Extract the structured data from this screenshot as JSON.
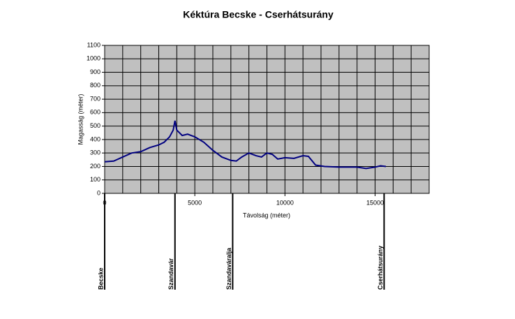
{
  "chart_data": {
    "type": "line",
    "title": "Kéktúra  Becske - Cserhátsurány",
    "x_label": "Távolság (méter)",
    "y_label": "Magasság (méter)",
    "x": [
      0,
      500,
      1000,
      1500,
      2000,
      2500,
      3000,
      3300,
      3600,
      3800,
      3900,
      4000,
      4300,
      4600,
      5000,
      5500,
      6000,
      6500,
      7000,
      7300,
      7600,
      8000,
      8400,
      8700,
      9000,
      9300,
      9600,
      10000,
      10500,
      11000,
      11300,
      11700,
      12200,
      13000,
      14000,
      14500,
      15000,
      15300,
      15600
    ],
    "series": [
      {
        "color": "#000080",
        "values": [
          235,
          240,
          270,
          300,
          310,
          340,
          360,
          380,
          420,
          470,
          540,
          470,
          430,
          440,
          420,
          380,
          320,
          270,
          245,
          240,
          270,
          300,
          280,
          270,
          300,
          290,
          255,
          265,
          260,
          280,
          275,
          210,
          200,
          195,
          195,
          185,
          195,
          205,
          200
        ]
      }
    ],
    "xlim": [
      0,
      18000
    ],
    "ylim": [
      0,
      1100
    ],
    "xticks": [
      0,
      5000,
      10000,
      15000
    ],
    "yticks": [
      0,
      100,
      200,
      300,
      400,
      500,
      600,
      700,
      800,
      900,
      1000,
      1100
    ],
    "x_gridlines": [
      0,
      1000,
      2000,
      3000,
      4000,
      5000,
      6000,
      7000,
      8000,
      9000,
      10000,
      11000,
      12000,
      13000,
      14000,
      15000,
      16000,
      17000,
      18000
    ],
    "grid": true,
    "plot_background": "#c0c0c0",
    "annotations": [
      {
        "text": "Becske",
        "x": 0
      },
      {
        "text": "Szandavár",
        "x": 3900
      },
      {
        "text": "Szandaváralja",
        "x": 7100
      },
      {
        "text": "Cserhátsurány",
        "x": 15500
      }
    ]
  }
}
